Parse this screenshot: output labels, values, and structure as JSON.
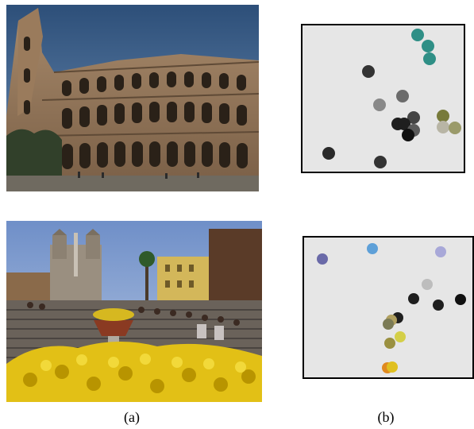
{
  "captions": {
    "a": "(a)",
    "b": "(b)"
  },
  "images": {
    "top_photo": "colosseum-photo",
    "bottom_photo": "spanish-steps-photo"
  },
  "plots": {
    "top": {
      "background": "#e6e6e6",
      "colors": [
        "#2f8f86",
        "#333333",
        "#888888",
        "#6b6b6b",
        "#1f1f1f",
        "#777a3a",
        "#b8b5a5",
        "#9a9a6a",
        "#2a2a2a"
      ]
    },
    "bottom": {
      "background": "#e6e6e6",
      "colors": [
        "#6a6aa8",
        "#5ea0d8",
        "#a8a8d8",
        "#bdbdbd",
        "#1f1f1f",
        "#7a7a55",
        "#d4cf48",
        "#e0c020",
        "#b0a060"
      ]
    }
  }
}
